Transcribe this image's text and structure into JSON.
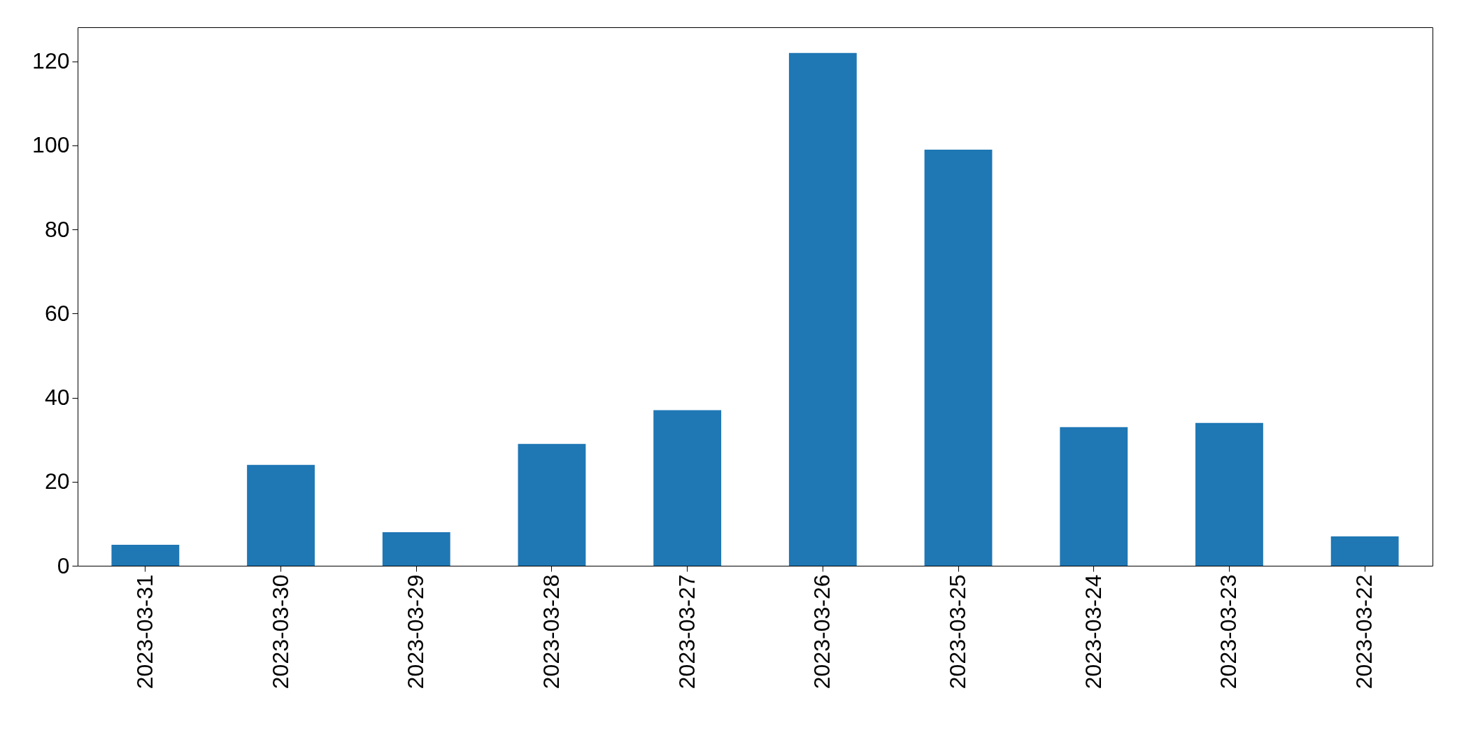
{
  "chart_data": {
    "type": "bar",
    "categories": [
      "2023-03-31",
      "2023-03-30",
      "2023-03-29",
      "2023-03-28",
      "2023-03-27",
      "2023-03-26",
      "2023-03-25",
      "2023-03-24",
      "2023-03-23",
      "2023-03-22"
    ],
    "values": [
      5,
      24,
      8,
      29,
      37,
      122,
      99,
      33,
      34,
      7
    ],
    "color": "#1f77b4",
    "ylim": [
      0,
      128.1
    ],
    "yticks": [
      0,
      20,
      40,
      60,
      80,
      100,
      120
    ],
    "grid": false
  }
}
